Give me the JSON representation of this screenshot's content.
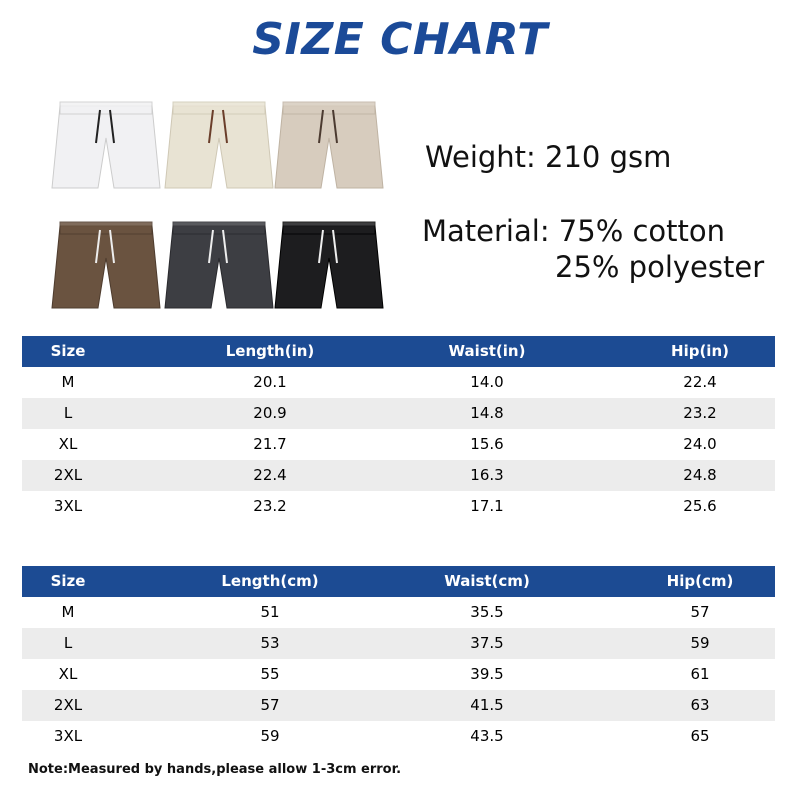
{
  "header": {
    "title": "SIZE CHART"
  },
  "specs": {
    "weight": "Weight: 210 gsm",
    "material": [
      "Material: 75% cotton",
      "25% polyester"
    ]
  },
  "tables": [
    {
      "columns": [
        "Size",
        "Length(in)",
        "Waist(in)",
        "Hip(in)"
      ],
      "rows": [
        [
          "M",
          "20.1",
          "14.0",
          "22.4"
        ],
        [
          "L",
          "20.9",
          "14.8",
          "23.2"
        ],
        [
          "XL",
          "21.7",
          "15.6",
          "24.0"
        ],
        [
          "2XL",
          "22.4",
          "16.3",
          "24.8"
        ],
        [
          "3XL",
          "23.2",
          "17.1",
          "25.6"
        ]
      ]
    },
    {
      "columns": [
        "Size",
        "Length(cm)",
        "Waist(cm)",
        "Hip(cm)"
      ],
      "rows": [
        [
          "M",
          "51",
          "35.5",
          "57"
        ],
        [
          "L",
          "53",
          "37.5",
          "59"
        ],
        [
          "XL",
          "55",
          "39.5",
          "61"
        ],
        [
          "2XL",
          "57",
          "41.5",
          "63"
        ],
        [
          "3XL",
          "59",
          "43.5",
          "65"
        ]
      ]
    }
  ],
  "note": "Note:Measured by hands,please allow 1-3cm error."
}
